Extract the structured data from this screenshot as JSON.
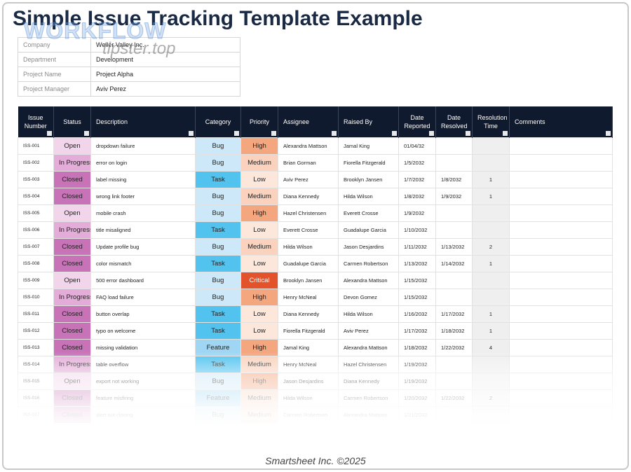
{
  "header": {
    "title": "Simple Issue Tracking Template Example"
  },
  "watermark": {
    "line1": "WORKFLOW",
    "line2": "tipster.top"
  },
  "info": {
    "rows": [
      [
        "Company",
        "Weller Valley Inc."
      ],
      [
        "Department",
        "Development"
      ],
      [
        "Project Name",
        "Project Alpha"
      ],
      [
        "Project Manager",
        "Aviv Perez"
      ]
    ]
  },
  "table": {
    "columns": [
      "Issue Number",
      "Status",
      "Description",
      "Category",
      "Priority",
      "Assignee",
      "Raised By",
      "Date Reported",
      "Date Resolved",
      "Resolution Time",
      "Comments"
    ],
    "rows": [
      [
        "ISS-001",
        "Open",
        "dropdown failure",
        "Bug",
        "High",
        "Alexandra Mattson",
        "Jamal King",
        "01/04/32",
        null,
        null,
        null
      ],
      [
        "ISS-002",
        "In Progress",
        "error on login",
        "Bug",
        "Medium",
        "Brian Gorman",
        "Fiorella Fitzgerald",
        "1/5/2032",
        null,
        null,
        null
      ],
      [
        "ISS-003",
        "Closed",
        "label missing",
        "Task",
        "Low",
        "Aviv Perez",
        "Brooklyn Jansen",
        "1/7/2032",
        "1/8/2032",
        1,
        null
      ],
      [
        "ISS-004",
        "Closed",
        "wrong link footer",
        "Bug",
        "Medium",
        "Diana Kennedy",
        "Hilda Wilson",
        "1/8/2032",
        "1/9/2032",
        1,
        null
      ],
      [
        "ISS-005",
        "Open",
        "mobile crash",
        "Bug",
        "High",
        "Hazel Christensen",
        "Everett Crosse",
        "1/9/2032",
        null,
        null,
        null
      ],
      [
        "ISS-006",
        "In Progress",
        "title misaligned",
        "Task",
        "Low",
        "Everett Crosse",
        "Guadalupe Garcia",
        "1/10/2032",
        null,
        null,
        null
      ],
      [
        "ISS-007",
        "Closed",
        "Update profile bug",
        "Bug",
        "Medium",
        "Hilda Wilson",
        "Jason Desjardins",
        "1/11/2032",
        "1/13/2032",
        2,
        null
      ],
      [
        "ISS-008",
        "Closed",
        "color mismatch",
        "Task",
        "Low",
        "Guadalupe Garcia",
        "Carmen Robertson",
        "1/13/2032",
        "1/14/2032",
        1,
        null
      ],
      [
        "ISS-009",
        "Open",
        "500 error dashboard",
        "Bug",
        "Critical",
        "Brooklyn Jansen",
        "Alexandra Mattson",
        "1/15/2032",
        null,
        null,
        null
      ],
      [
        "ISS-010",
        "In Progress",
        "FAQ load failure",
        "Bug",
        "High",
        "Henry McNeal",
        "Devon Gomez",
        "1/15/2032",
        null,
        null,
        null
      ],
      [
        "ISS-011",
        "Closed",
        "button overlap",
        "Task",
        "Low",
        "Diana Kennedy",
        "Hilda Wilson",
        "1/16/2032",
        "1/17/2032",
        1,
        null
      ],
      [
        "ISS-012",
        "Closed",
        "typo on welcome",
        "Task",
        "Low",
        "Fiorella Fitzgerald",
        "Aviv Perez",
        "1/17/2032",
        "1/18/2032",
        1,
        null
      ],
      [
        "ISS-013",
        "Closed",
        "missing validation",
        "Feature",
        "High",
        "Jamal King",
        "Alexandra Mattson",
        "1/18/2032",
        "1/22/2032",
        4,
        null
      ],
      [
        "ISS-014",
        "In Progress",
        "table overflow",
        "Task",
        "Medium",
        "Henry McNeal",
        "Hazel Christensen",
        "1/19/2032",
        null,
        null,
        null
      ],
      [
        "ISS-015",
        "Open",
        "export not working",
        "Bug",
        "High",
        "Jason Desjardins",
        "Diana Kennedy",
        "1/19/2032",
        null,
        null,
        null
      ],
      [
        "ISS-016",
        "Closed",
        "feature misfiring",
        "Feature",
        "Medium",
        "Hilda Wilson",
        "Carmen Robertson",
        "1/20/2032",
        "1/22/2032",
        2,
        null
      ],
      [
        "ISS-017",
        "Closed",
        "alert not closing",
        "Bug",
        "Medium",
        "Carmen Robertson",
        "Alexandra Mattson",
        "1/21/2032",
        null,
        null,
        null
      ]
    ],
    "palette": {
      "Open": "#f3d5eb",
      "In Progress": "#e4acd8",
      "Closed": "#c873b8",
      "Bug": "#cde8f8",
      "Task": "#52c3ef",
      "Feature": "#9fd6f3",
      "High": "#f4a67f",
      "Medium": "#fad2bd",
      "Low": "#fde6da",
      "Critical": "#e2522b"
    }
  },
  "footer": {
    "text": "Smartsheet Inc. ©2025"
  }
}
